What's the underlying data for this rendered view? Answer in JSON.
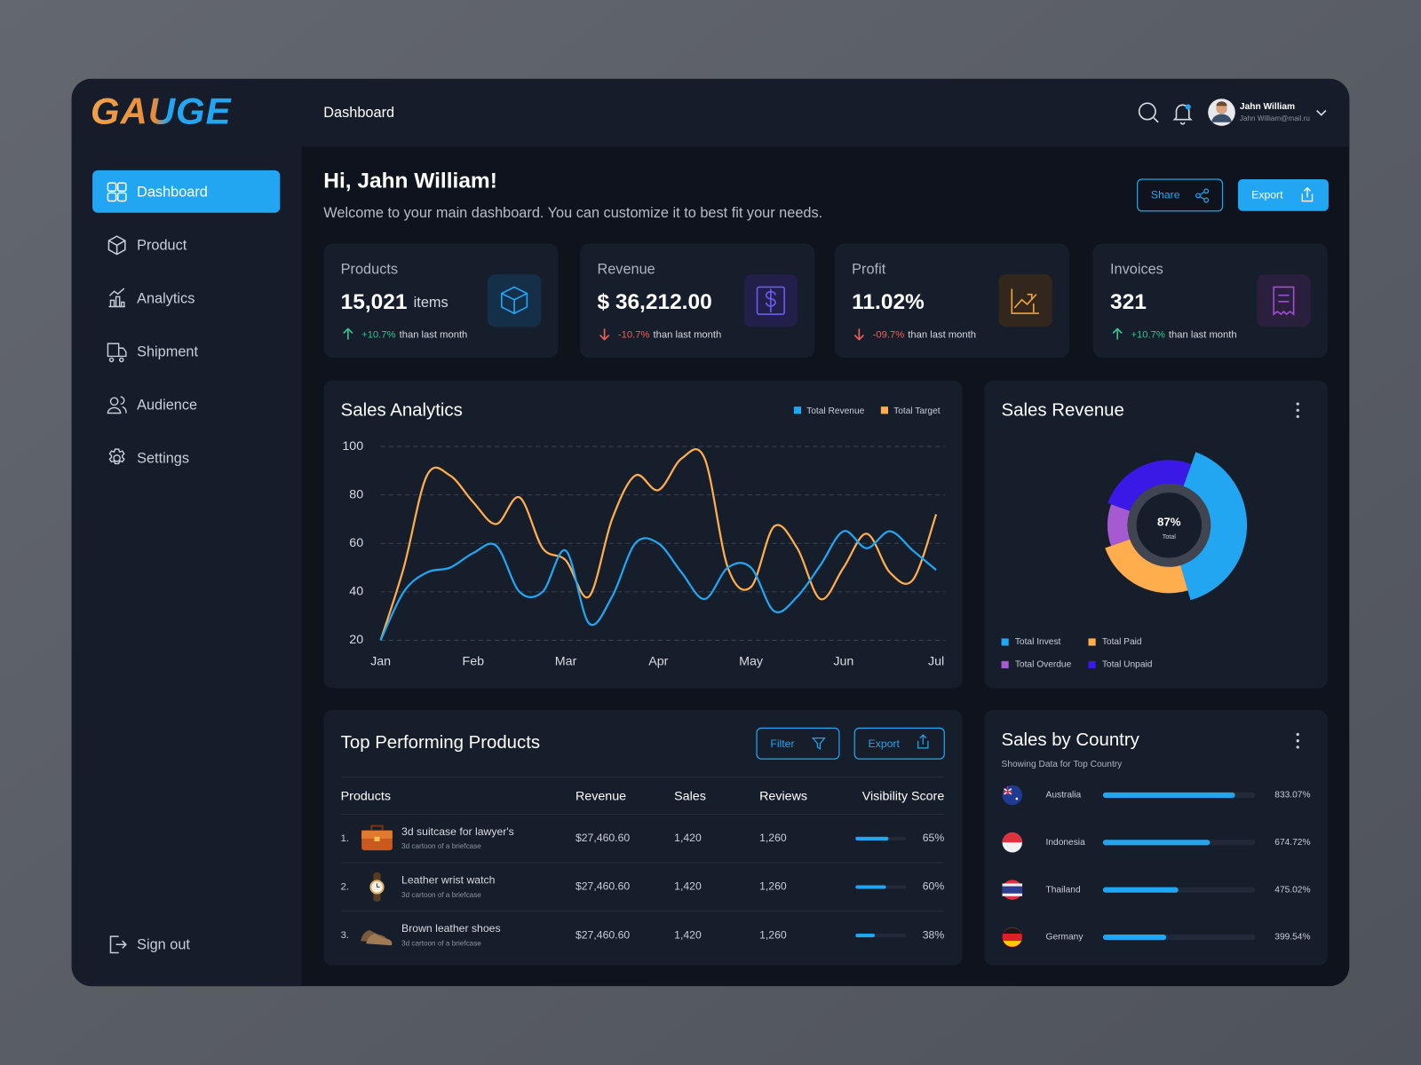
{
  "logo": "GAUGE",
  "header": {
    "title": "Dashboard",
    "user": {
      "name": "Jahn William",
      "email": "Jahn William@mail.ru"
    }
  },
  "nav": [
    "Dashboard",
    "Product",
    "Analytics",
    "Shipment",
    "Audience",
    "Settings"
  ],
  "sign_out": "Sign out",
  "greeting": {
    "title": "Hi, Jahn William!",
    "subtitle": "Welcome to your main dashboard. You can customize it to best fit your needs."
  },
  "actions": [
    "Share",
    "Export"
  ],
  "stats": [
    {
      "label": "Products",
      "value": "15,021",
      "unit": "items",
      "change": "+10.7%",
      "note": "than last month"
    },
    {
      "label": "Revenue",
      "value": "$ 36,212.00",
      "change": "-10.7%",
      "note": "than last month"
    },
    {
      "label": "Profit",
      "value": "11.02%",
      "change": "-09.7%",
      "note": "than last month"
    },
    {
      "label": "Invoices",
      "value": "321",
      "change": "+10.7%",
      "note": "than last month"
    }
  ],
  "sales_analytics": {
    "type": "line",
    "title": "Sales Analytics",
    "categories": [
      "Jan",
      null,
      null,
      null,
      "Feb",
      null,
      null,
      null,
      "Mar",
      null,
      null,
      null,
      "Apr",
      null,
      null,
      null,
      "May",
      null,
      null,
      null,
      "Jun",
      null,
      null,
      null,
      "Jul"
    ],
    "series": [
      {
        "name": "Total Revenue",
        "color": "#22a6f2",
        "values": [
          20,
          40,
          48,
          50,
          56,
          59,
          40,
          40,
          57,
          27,
          38,
          60,
          60,
          48,
          37,
          50,
          50,
          32,
          38,
          51,
          65,
          58,
          65,
          57,
          49
        ]
      },
      {
        "name": "Total Target",
        "color": "#ffad4d",
        "values": [
          20,
          50,
          88,
          88,
          77,
          68,
          79,
          58,
          53,
          38,
          70,
          88,
          82,
          95,
          95,
          50,
          42,
          67,
          58,
          37,
          50,
          64,
          48,
          45,
          72
        ]
      }
    ],
    "ylim": [
      20,
      100
    ],
    "yticks": [
      20,
      40,
      60,
      80,
      100
    ],
    "grid": true
  },
  "sales_revenue": {
    "type": "pie",
    "title": "Sales Revenue",
    "center_value": "87%",
    "center_label": "Total",
    "categories": [
      "Total Invest",
      "Total Paid",
      "Total Overdue",
      "Total Unpaid"
    ],
    "values": [
      40,
      24,
      11,
      25
    ],
    "colors": [
      "#22a6f2",
      "#ffad4d",
      "#a55ad1",
      "#3a18e6"
    ]
  },
  "top_products": {
    "title": "Top Performing Products",
    "buttons": [
      "Filter",
      "Export"
    ],
    "columns": [
      "Products",
      "Revenue",
      "Sales",
      "Reviews",
      "Visibility Score"
    ],
    "rows": [
      {
        "rank": "1.",
        "name": "3d suitcase for lawyer's",
        "description": "3d cartoon of a briefcase",
        "revenue": "$27,460.60",
        "sales": "1,420",
        "reviews": "1,260",
        "score": 65,
        "score_label": "65%"
      },
      {
        "rank": "2.",
        "name": "Leather wrist watch",
        "description": "3d cartoon of a briefcase",
        "revenue": "$27,460.60",
        "sales": "1,420",
        "reviews": "1,260",
        "score": 60,
        "score_label": "60%"
      },
      {
        "rank": "3.",
        "name": "Brown leather shoes",
        "description": "3d cartoon of a briefcase",
        "revenue": "$27,460.60",
        "sales": "1,420",
        "reviews": "1,260",
        "score": 38,
        "score_label": "38%"
      }
    ]
  },
  "sales_by_country": {
    "type": "bar",
    "title": "Sales by Country",
    "subtitle": "Showing Data for Top Country",
    "categories": [
      "Australia",
      "Indonesia",
      "Thailand",
      "Germany"
    ],
    "values": [
      833.07,
      674.72,
      475.02,
      399.54
    ],
    "value_labels": [
      "833.07%",
      "674.72%",
      "475.02%",
      "399.54%"
    ],
    "xlim": [
      0,
      960
    ],
    "color": "#22a6f2"
  }
}
